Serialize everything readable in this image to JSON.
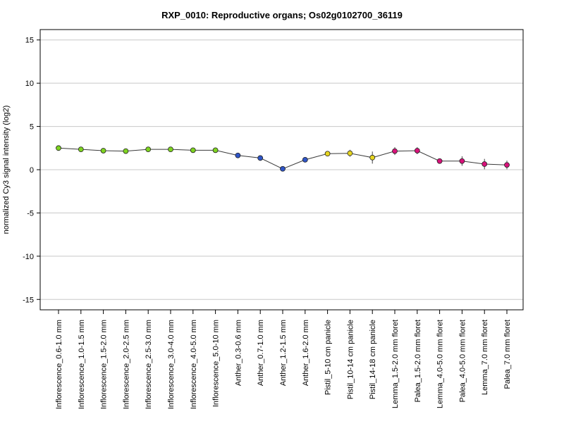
{
  "chart_data": {
    "type": "line",
    "title": "RXP_0010: Reproductive organs; Os02g0102700_36119",
    "xlabel": "",
    "ylabel": "normalized Cy3 signal intensity (log2)",
    "ylim": [
      -16.2,
      16.2
    ],
    "yticks": [
      -15,
      -10,
      -5,
      0,
      5,
      10,
      15
    ],
    "grid": "horizontal",
    "categories": [
      "Inflorescence_0.6-1.0 mm",
      "Inflorescence_1.0-1.5 mm",
      "Inflorescence_1.5-2.0 mm",
      "Inflorescence_2.0-2.5 mm",
      "Inflorescence_2.5-3.0 mm",
      "Inflorescence_3.0-4.0 mm",
      "Inflorescence_4.0-5.0 mm",
      "Inflorescence_5.0-10 mm",
      "Anther_0.3-0.6 mm",
      "Anther_0.7-1.0 mm",
      "Anther_1.2-1.5 mm",
      "Anther_1.6-2.0 mm",
      "Pistil_5-10 cm panicle",
      "Pistil_10-14 cm panicle",
      "Pistil_14-18 cm panicle",
      "Lemma_1.5-2.0 mm floret",
      "Palea_1.5-2.0 mm floret",
      "Lemma_4.0-5.0 mm floret",
      "Palea_4.0-5.0 mm floret",
      "Lemma_7.0 mm floret",
      "Palea_7.0 mm floret"
    ],
    "values": [
      2.5,
      2.35,
      2.2,
      2.15,
      2.35,
      2.35,
      2.25,
      2.25,
      1.65,
      1.35,
      0.1,
      1.15,
      1.85,
      1.9,
      1.4,
      2.15,
      2.2,
      1.0,
      1.0,
      0.65,
      0.55
    ],
    "error": [
      0.1,
      0.1,
      0.1,
      0.1,
      0.1,
      0.1,
      0.1,
      0.1,
      0.15,
      0.1,
      0.1,
      0.1,
      0.15,
      0.4,
      0.7,
      0.45,
      0.4,
      0.3,
      0.55,
      0.6,
      0.5
    ],
    "point_colors": [
      "#7ed321",
      "#7ed321",
      "#7ed321",
      "#7ed321",
      "#7ed321",
      "#7ed321",
      "#7ed321",
      "#7ed321",
      "#2f55c7",
      "#2f55c7",
      "#2f55c7",
      "#2f55c7",
      "#e6d51f",
      "#e6d51f",
      "#e6d51f",
      "#d8127a",
      "#d8127a",
      "#d8127a",
      "#d8127a",
      "#d8127a",
      "#d8127a"
    ],
    "line_color": "#3a3a3a",
    "grid_color": "#c8c8c8"
  }
}
